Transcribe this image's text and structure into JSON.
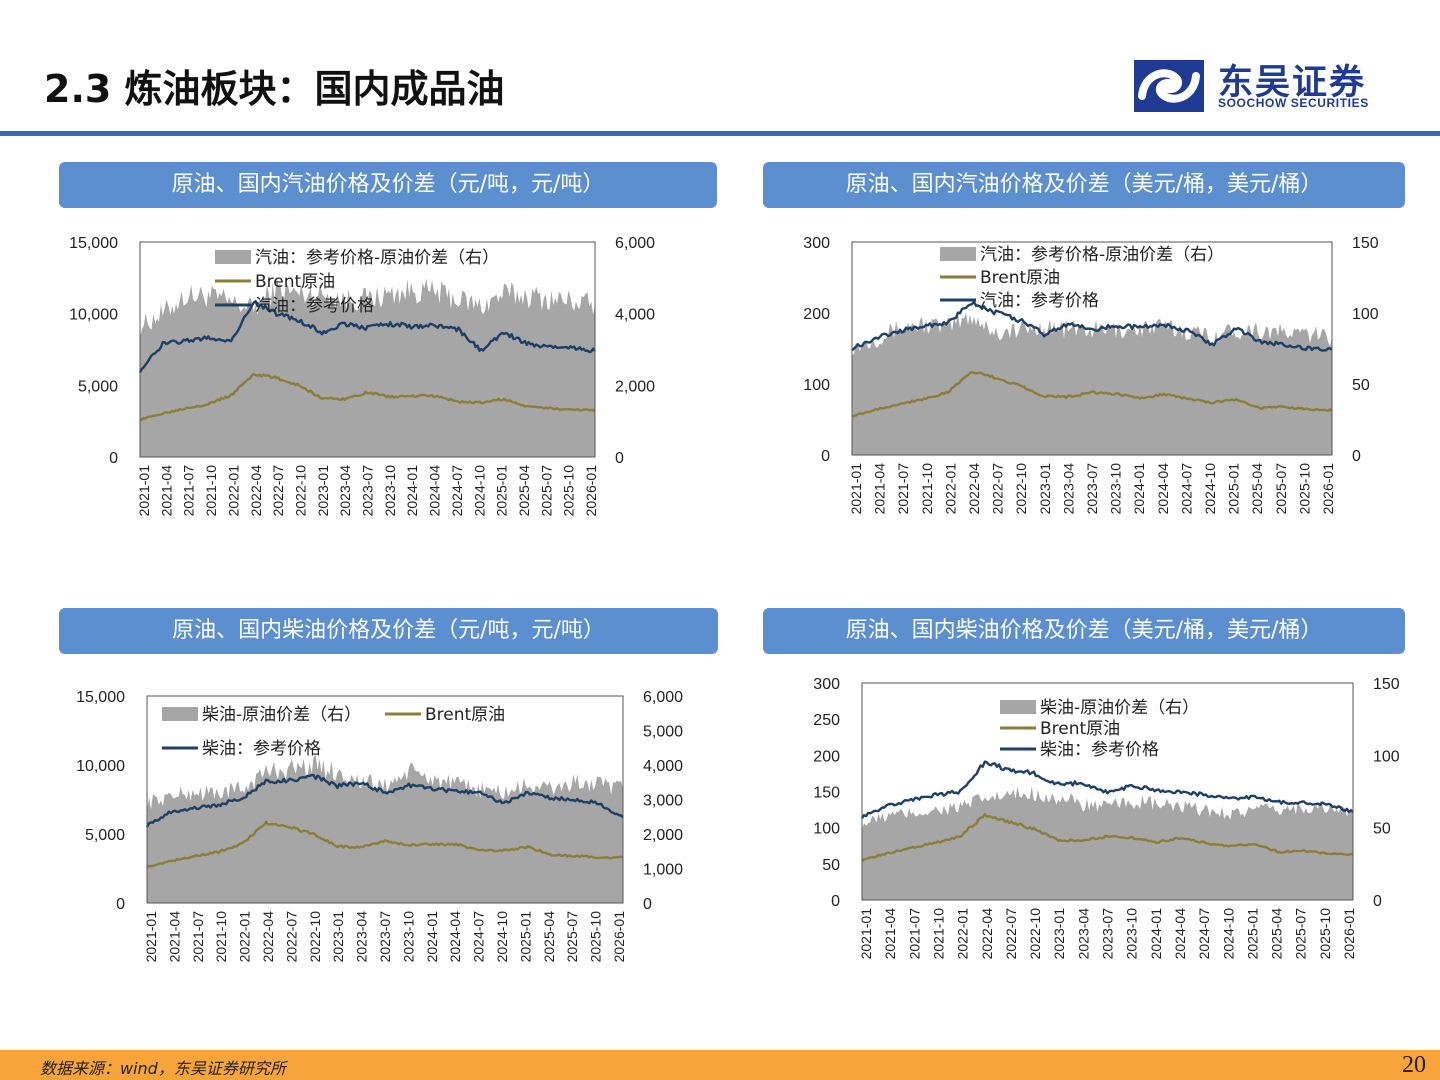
{
  "page": {
    "title": "2.3 炼油板块：国内成品油",
    "logo_cn": "东吴证券",
    "logo_en": "SOOCHOW SECURITIES",
    "source": "数据来源：wind，东吴证券研究所",
    "page_number": "20"
  },
  "colors": {
    "spread": "#a6a6a6",
    "brent": "#8b7d3a",
    "product": "#1f3f66",
    "panel_header": "#5b8fd0",
    "header_rule": "#2f6fb7",
    "footer": "#f7a43a",
    "logo": "#1f3a93"
  },
  "icons": {
    "logo": "soochow-logo-icon"
  },
  "chart_data": [
    {
      "id": "gasoline_cny",
      "type": "area+line",
      "title": "原油、国内汽油价格及价差（元/吨，元/吨）",
      "categories": [
        "2021-01",
        "2021-04",
        "2021-07",
        "2021-10",
        "2022-01",
        "2022-04",
        "2022-07",
        "2022-10",
        "2023-01",
        "2023-04",
        "2023-07",
        "2023-10",
        "2024-01",
        "2024-04",
        "2024-07",
        "2024-10",
        "2025-01",
        "2025-04",
        "2025-07",
        "2025-10",
        "2026-01"
      ],
      "ylim_left": [
        0,
        15000
      ],
      "yticks_left": [
        "15,000",
        "10,000",
        "5,000",
        "0"
      ],
      "ylim_right": [
        0,
        6000
      ],
      "yticks_right": [
        "6,000",
        "4,000",
        "2,000",
        "0"
      ],
      "series": [
        {
          "name": "汽油：参考价格-原油价差（右）",
          "kind": "area",
          "axis": "right",
          "values": [
            3650,
            4000,
            4500,
            4500,
            4300,
            4150,
            4700,
            4550,
            4550,
            4400,
            4400,
            4550,
            4650,
            4600,
            4400,
            4200,
            4550,
            4500,
            4400,
            4350,
            4250
          ]
        },
        {
          "name": "Brent原油",
          "kind": "line",
          "axis": "left",
          "values": [
            2600,
            3050,
            3400,
            3700,
            4300,
            5800,
            5500,
            5000,
            4100,
            4050,
            4500,
            4200,
            4250,
            4250,
            3850,
            3800,
            4050,
            3500,
            3400,
            3300,
            3300
          ]
        },
        {
          "name": "汽油：参考价格",
          "kind": "line",
          "axis": "left",
          "values": [
            6000,
            7900,
            8100,
            8300,
            8100,
            10800,
            10000,
            9500,
            8700,
            9300,
            9000,
            9300,
            9100,
            9200,
            8900,
            7400,
            8700,
            7900,
            7700,
            7600,
            7400
          ]
        }
      ],
      "legend_order": [
        0,
        1,
        2
      ]
    },
    {
      "id": "gasoline_usd",
      "type": "area+line",
      "title": "原油、国内汽油价格及价差（美元/桶，美元/桶）",
      "categories": [
        "2021-01",
        "2021-04",
        "2021-07",
        "2021-10",
        "2022-01",
        "2022-04",
        "2022-07",
        "2022-10",
        "2023-01",
        "2023-04",
        "2023-07",
        "2023-10",
        "2024-01",
        "2024-04",
        "2024-07",
        "2024-10",
        "2025-01",
        "2025-04",
        "2025-07",
        "2025-10",
        "2026-01"
      ],
      "ylim_left": [
        0,
        300
      ],
      "yticks_left": [
        "300",
        "200",
        "100",
        "0"
      ],
      "ylim_right": [
        0,
        150
      ],
      "yticks_right": [
        "150",
        "100",
        "50",
        "0"
      ],
      "series": [
        {
          "name": "汽油：参考价格-原油价差（右）",
          "kind": "area",
          "axis": "right",
          "values": [
            76,
            82,
            90,
            92,
            90,
            98,
            86,
            88,
            90,
            89,
            88,
            88,
            89,
            90,
            87,
            84,
            88,
            88,
            86,
            85,
            83
          ]
        },
        {
          "name": "Brent原油",
          "kind": "line",
          "axis": "left",
          "values": [
            55,
            64,
            72,
            79,
            88,
            118,
            108,
            98,
            83,
            82,
            88,
            86,
            80,
            86,
            79,
            74,
            78,
            66,
            68,
            64,
            63
          ]
        },
        {
          "name": "汽油：参考价格",
          "kind": "line",
          "axis": "left",
          "values": [
            150,
            165,
            175,
            182,
            185,
            215,
            200,
            190,
            170,
            185,
            176,
            182,
            180,
            183,
            175,
            155,
            178,
            160,
            155,
            150,
            148
          ]
        }
      ],
      "legend_order": [
        0,
        1,
        2
      ]
    },
    {
      "id": "diesel_cny",
      "type": "area+line",
      "title": "原油、国内柴油价格及价差（元/吨，元/吨）",
      "categories": [
        "2021-01",
        "2021-04",
        "2021-07",
        "2021-10",
        "2022-01",
        "2022-04",
        "2022-07",
        "2022-10",
        "2023-01",
        "2023-04",
        "2023-07",
        "2023-10",
        "2024-01",
        "2024-04",
        "2024-07",
        "2024-10",
        "2025-01",
        "2025-04",
        "2025-07",
        "2025-10",
        "2026-01"
      ],
      "ylim_left": [
        0,
        15000
      ],
      "yticks_left": [
        "15,000",
        "10,000",
        "5,000",
        "0"
      ],
      "ylim_right": [
        0,
        6000
      ],
      "yticks_right": [
        "6,000",
        "5,000",
        "4,000",
        "3,000",
        "2,000",
        "1,000",
        "0"
      ],
      "series": [
        {
          "name": "柴油-原油价差（右）",
          "kind": "area",
          "axis": "right",
          "values": [
            2900,
            3100,
            3200,
            3200,
            3300,
            3800,
            3900,
            4000,
            3800,
            3500,
            3400,
            3800,
            3600,
            3400,
            3300,
            3200,
            3400,
            3300,
            3500,
            3400,
            3300
          ]
        },
        {
          "name": "Brent原油",
          "kind": "line",
          "axis": "left",
          "values": [
            2600,
            3050,
            3400,
            3700,
            4300,
            5800,
            5500,
            5000,
            4100,
            4050,
            4500,
            4200,
            4250,
            4250,
            3850,
            3800,
            4050,
            3500,
            3400,
            3300,
            3300
          ]
        },
        {
          "name": "柴油：参考价格",
          "kind": "line",
          "axis": "left",
          "values": [
            5600,
            6600,
            6900,
            7100,
            7600,
            8800,
            8900,
            9200,
            8500,
            8700,
            8000,
            8500,
            8300,
            8100,
            8000,
            7200,
            8000,
            7600,
            7500,
            7200,
            6200
          ]
        }
      ],
      "legend_order": [
        0,
        1,
        2
      ]
    },
    {
      "id": "diesel_usd",
      "type": "area+line",
      "title": "原油、国内柴油价格及价差（美元/桶，美元/桶）",
      "categories": [
        "2021-01",
        "2021-04",
        "2021-07",
        "2021-10",
        "2022-01",
        "2022-04",
        "2022-07",
        "2022-10",
        "2023-01",
        "2023-04",
        "2023-07",
        "2023-10",
        "2024-01",
        "2024-04",
        "2024-07",
        "2024-10",
        "2025-01",
        "2025-04",
        "2025-07",
        "2025-10",
        "2026-01"
      ],
      "ylim_left": [
        0,
        300
      ],
      "yticks_left": [
        "300",
        "250",
        "200",
        "150",
        "100",
        "50",
        "0"
      ],
      "ylim_right": [
        0,
        150
      ],
      "yticks_right": [
        "150",
        "100",
        "50",
        "0"
      ],
      "series": [
        {
          "name": "柴油-原油价差（右）",
          "kind": "area",
          "axis": "right",
          "values": [
            52,
            58,
            60,
            62,
            64,
            70,
            72,
            74,
            70,
            66,
            64,
            68,
            66,
            64,
            62,
            60,
            62,
            62,
            64,
            64,
            60
          ]
        },
        {
          "name": "Brent原油",
          "kind": "line",
          "axis": "left",
          "values": [
            55,
            64,
            72,
            79,
            88,
            118,
            108,
            98,
            83,
            82,
            88,
            86,
            80,
            86,
            79,
            74,
            78,
            66,
            68,
            64,
            63
          ]
        },
        {
          "name": "柴油：参考价格",
          "kind": "line",
          "axis": "left",
          "values": [
            115,
            130,
            138,
            145,
            150,
            190,
            180,
            175,
            160,
            162,
            148,
            158,
            152,
            150,
            145,
            140,
            142,
            135,
            135,
            132,
            122
          ]
        }
      ],
      "legend_order": [
        0,
        1,
        2
      ]
    }
  ]
}
